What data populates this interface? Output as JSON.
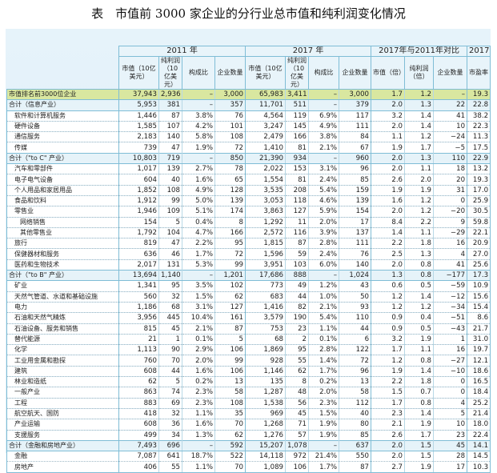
{
  "title": "表　市值前 3000 家企业的分行业总市值和纯利润变化情况",
  "colors": {
    "top_row": "#d9e7a0",
    "total_row": "#e6f3f9",
    "border": "#7fbdd6",
    "background": "#e6f3fa"
  },
  "header": {
    "groups": [
      "2011 年",
      "2017 年",
      "2017年与2011年对比",
      "2017 年"
    ],
    "columns": [
      "市值（10亿美元）",
      "纯利润（10亿美元）",
      "构成比",
      "企业数量",
      "市值（10亿美元）",
      "纯利润（10亿美元）",
      "构成比",
      "企业数量",
      "市值（倍）",
      "纯利润（倍）",
      "企业数量",
      "市盈率"
    ]
  },
  "table": {
    "rows": [
      {
        "label": "市值排名前3000位企业",
        "type": "top",
        "indent": 0,
        "values": [
          "37,943",
          "2,936",
          "–",
          "3,000",
          "65,983",
          "3,411",
          "–",
          "3,000",
          "1.7",
          "1.2",
          "–",
          "19.3"
        ]
      },
      {
        "label": "合计（信息产业）",
        "type": "total",
        "indent": 0,
        "values": [
          "5,953",
          "381",
          "–",
          "357",
          "11,701",
          "511",
          "–",
          "379",
          "2.0",
          "1.3",
          "22",
          "22.8"
        ]
      },
      {
        "label": "软件和计算机服务",
        "indent": 1,
        "values": [
          "1,446",
          "87",
          "3.8%",
          "76",
          "4,564",
          "119",
          "6.9%",
          "117",
          "3.2",
          "1.4",
          "41",
          "38.2"
        ]
      },
      {
        "label": "硬件设备",
        "indent": 1,
        "values": [
          "1,585",
          "107",
          "4.2%",
          "101",
          "3,247",
          "145",
          "4.9%",
          "111",
          "2.0",
          "1.4",
          "10",
          "22.3"
        ]
      },
      {
        "label": "通信服务",
        "indent": 1,
        "values": [
          "2,183",
          "140",
          "5.8%",
          "108",
          "2,479",
          "166",
          "3.8%",
          "84",
          "1.1",
          "1.2",
          "−24",
          "11.3"
        ]
      },
      {
        "label": "传媒",
        "indent": 1,
        "values": [
          "739",
          "47",
          "1.9%",
          "72",
          "1,410",
          "81",
          "2.1%",
          "67",
          "1.9",
          "1.7",
          "−5",
          "17.5"
        ]
      },
      {
        "label": "合计（\"to C\" 产业）",
        "type": "total",
        "indent": 0,
        "values": [
          "10,803",
          "719",
          "–",
          "850",
          "21,390",
          "934",
          "–",
          "960",
          "2.0",
          "1.3",
          "110",
          "22.9"
        ]
      },
      {
        "label": "汽车和零部件",
        "indent": 1,
        "values": [
          "1,017",
          "139",
          "2.7%",
          "78",
          "2,022",
          "153",
          "3.1%",
          "96",
          "2.0",
          "1.1",
          "18",
          "13.2"
        ]
      },
      {
        "label": "电子电气设备",
        "indent": 1,
        "values": [
          "604",
          "40",
          "1.6%",
          "65",
          "1,554",
          "81",
          "2.4%",
          "85",
          "2.6",
          "2.0",
          "20",
          "19.3"
        ]
      },
      {
        "label": "个人用品和家居用品",
        "indent": 1,
        "values": [
          "1,852",
          "108",
          "4.9%",
          "128",
          "3,535",
          "208",
          "5.4%",
          "159",
          "1.9",
          "1.9",
          "31",
          "17.0"
        ]
      },
      {
        "label": "食品和饮料",
        "indent": 1,
        "values": [
          "1,912",
          "99",
          "5.0%",
          "139",
          "3,053",
          "118",
          "4.6%",
          "139",
          "1.6",
          "1.2",
          "0",
          "25.9"
        ]
      },
      {
        "label": "零售业",
        "indent": 1,
        "values": [
          "1,946",
          "109",
          "5.1%",
          "174",
          "3,863",
          "127",
          "5.9%",
          "154",
          "2.0",
          "1.2",
          "−20",
          "30.5"
        ]
      },
      {
        "label": "网络销售",
        "indent": 2,
        "values": [
          "154",
          "5",
          "0.4%",
          "8",
          "1,292",
          "11",
          "2.0%",
          "17",
          "8.4",
          "2.2",
          "9",
          "59.8"
        ]
      },
      {
        "label": "其他零售业",
        "indent": 2,
        "values": [
          "1,792",
          "104",
          "4.7%",
          "166",
          "2,572",
          "116",
          "3.9%",
          "137",
          "1.4",
          "1.1",
          "−29",
          "22.1"
        ]
      },
      {
        "label": "旅行",
        "indent": 1,
        "values": [
          "819",
          "47",
          "2.2%",
          "95",
          "1,815",
          "87",
          "2.8%",
          "111",
          "2.2",
          "1.8",
          "16",
          "20.9"
        ]
      },
      {
        "label": "保健器材和服务",
        "indent": 1,
        "values": [
          "636",
          "46",
          "1.7%",
          "72",
          "1,596",
          "59",
          "2.4%",
          "76",
          "2.5",
          "1.3",
          "4",
          "27.0"
        ]
      },
      {
        "label": "医药和生物技术",
        "indent": 1,
        "values": [
          "2,017",
          "131",
          "5.3%",
          "99",
          "3,951",
          "103",
          "6.0%",
          "140",
          "2.0",
          "0.8",
          "41",
          "25.6"
        ]
      },
      {
        "label": "合计（\"to B\" 产业）",
        "type": "total",
        "indent": 0,
        "values": [
          "13,694",
          "1,140",
          "–",
          "1,201",
          "17,686",
          "888",
          "–",
          "1,024",
          "1.3",
          "0.8",
          "−177",
          "17.3"
        ]
      },
      {
        "label": "矿业",
        "indent": 1,
        "values": [
          "1,341",
          "95",
          "3.5%",
          "102",
          "773",
          "49",
          "1.2%",
          "43",
          "0.6",
          "0.5",
          "−59",
          "10.9"
        ]
      },
      {
        "label": "天然气管道、水道和基础设施",
        "indent": 1,
        "values": [
          "560",
          "32",
          "1.5%",
          "62",
          "683",
          "44",
          "1.0%",
          "50",
          "1.2",
          "1.4",
          "−12",
          "15.6"
        ]
      },
      {
        "label": "电力",
        "indent": 1,
        "values": [
          "1,186",
          "68",
          "3.1%",
          "127",
          "1,416",
          "82",
          "2.1%",
          "93",
          "1.2",
          "1.2",
          "−34",
          "15.4"
        ]
      },
      {
        "label": "石油和天然气精炼",
        "indent": 1,
        "values": [
          "3,956",
          "445",
          "10.4%",
          "161",
          "3,579",
          "190",
          "5.4%",
          "110",
          "0.9",
          "0.4",
          "−51",
          "8.6"
        ]
      },
      {
        "label": "石油设备、服务和销售",
        "indent": 1,
        "values": [
          "815",
          "45",
          "2.1%",
          "87",
          "753",
          "23",
          "1.1%",
          "44",
          "0.9",
          "0.5",
          "−43",
          "21.7"
        ]
      },
      {
        "label": "替代能源",
        "indent": 1,
        "values": [
          "21",
          "1",
          "0.1%",
          "5",
          "68",
          "2",
          "0.1%",
          "6",
          "3.2",
          "1.9",
          "1",
          "31.0"
        ]
      },
      {
        "label": "化学",
        "indent": 1,
        "values": [
          "1,113",
          "90",
          "2.9%",
          "106",
          "1,869",
          "95",
          "2.8%",
          "122",
          "1.7",
          "1.1",
          "16",
          "19.7"
        ]
      },
      {
        "label": "工业用金属和勘探",
        "indent": 1,
        "values": [
          "760",
          "70",
          "2.0%",
          "99",
          "928",
          "55",
          "1.4%",
          "72",
          "1.2",
          "0.8",
          "−27",
          "12.1"
        ]
      },
      {
        "label": "建筑",
        "indent": 1,
        "values": [
          "608",
          "44",
          "1.6%",
          "106",
          "1,146",
          "62",
          "1.7%",
          "96",
          "1.9",
          "1.4",
          "−10",
          "18.6"
        ]
      },
      {
        "label": "林业和造纸",
        "indent": 1,
        "values": [
          "62",
          "5",
          "0.2%",
          "13",
          "135",
          "8",
          "0.2%",
          "13",
          "2.2",
          "1.8",
          "0",
          "16.5"
        ]
      },
      {
        "label": "一般产业",
        "indent": 1,
        "values": [
          "863",
          "74",
          "2.3%",
          "58",
          "1,287",
          "48",
          "2.0%",
          "58",
          "1.5",
          "0.7",
          "0",
          "18.4"
        ]
      },
      {
        "label": "工程",
        "indent": 1,
        "values": [
          "883",
          "69",
          "2.3%",
          "108",
          "1,538",
          "56",
          "2.3%",
          "112",
          "1.7",
          "0.8",
          "4",
          "25.2"
        ]
      },
      {
        "label": "航空航天、国防",
        "indent": 1,
        "values": [
          "418",
          "32",
          "1.1%",
          "35",
          "969",
          "45",
          "1.5%",
          "40",
          "2.3",
          "1.4",
          "5",
          "21.4"
        ]
      },
      {
        "label": "产业运输",
        "indent": 1,
        "values": [
          "608",
          "36",
          "1.6%",
          "70",
          "1,268",
          "71",
          "1.9%",
          "80",
          "2.1",
          "1.9",
          "10",
          "18.0"
        ]
      },
      {
        "label": "支援服务",
        "indent": 1,
        "values": [
          "499",
          "34",
          "1.3%",
          "62",
          "1,276",
          "57",
          "1.9%",
          "85",
          "2.6",
          "1.7",
          "23",
          "22.4"
        ]
      },
      {
        "label": "合计（金融和房地产业）",
        "type": "total",
        "indent": 0,
        "values": [
          "7,493",
          "696",
          "–",
          "592",
          "15,207",
          "1,078",
          "–",
          "637",
          "2.0",
          "1.5",
          "45",
          "14.1"
        ]
      },
      {
        "label": "金融",
        "indent": 1,
        "values": [
          "7,087",
          "641",
          "18.7%",
          "522",
          "14,118",
          "972",
          "21.4%",
          "550",
          "2.0",
          "1.5",
          "28",
          "14.5"
        ]
      },
      {
        "label": "房地产",
        "indent": 1,
        "values": [
          "406",
          "55",
          "1.1%",
          "70",
          "1,089",
          "106",
          "1.7%",
          "87",
          "2.7",
          "1.9",
          "17",
          "10.3"
        ]
      }
    ]
  }
}
